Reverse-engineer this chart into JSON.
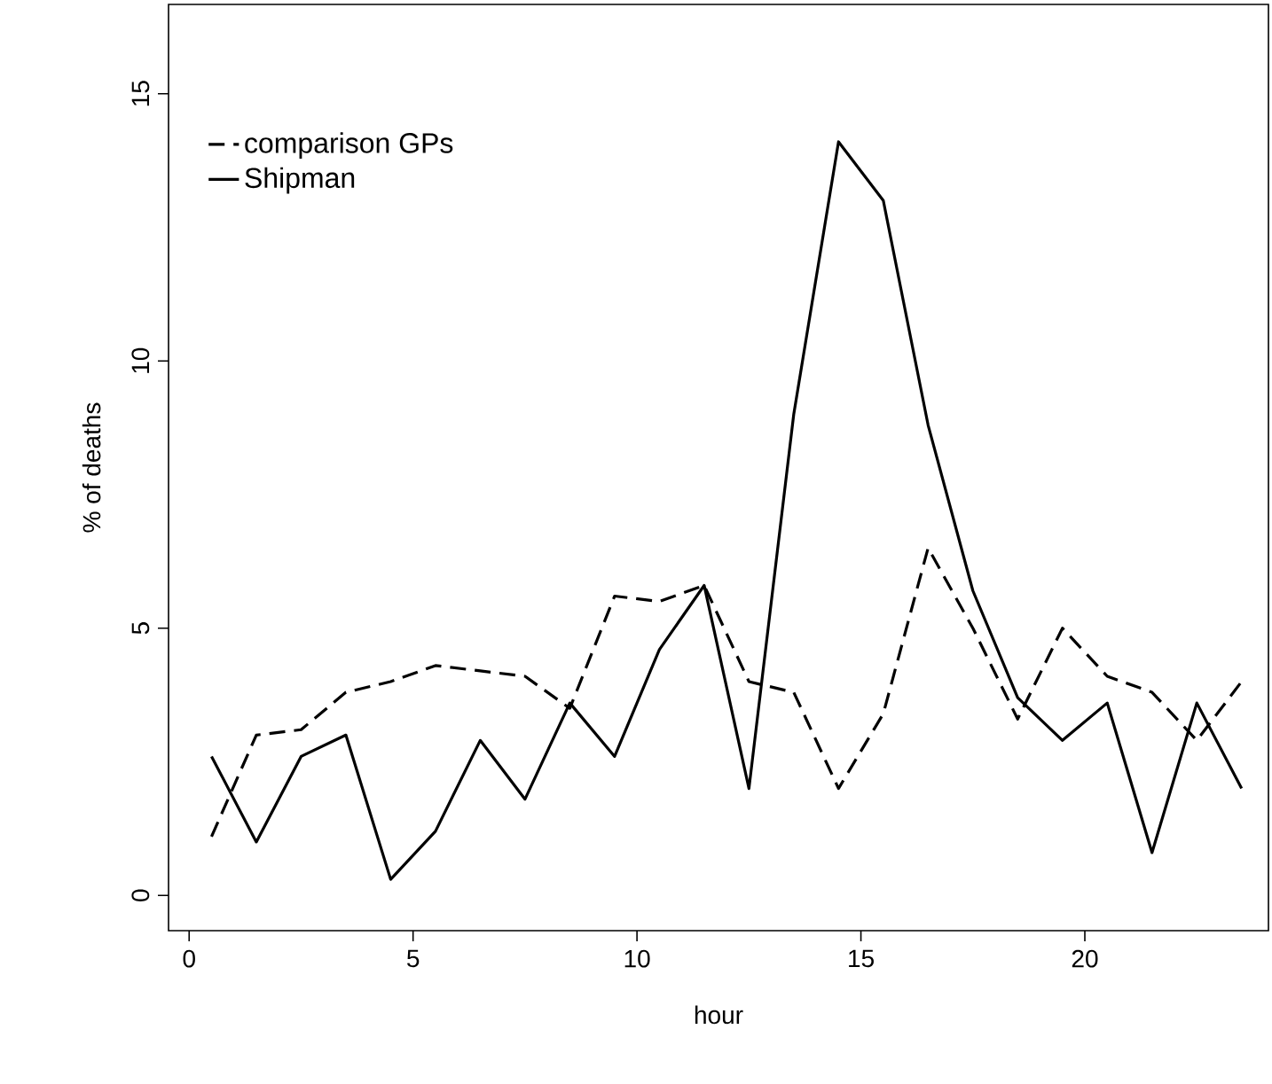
{
  "chart_data": {
    "type": "line",
    "xlabel": "hour",
    "ylabel": "% of deaths",
    "x": [
      0.5,
      1.5,
      2.5,
      3.5,
      4.5,
      5.5,
      6.5,
      7.5,
      8.5,
      9.5,
      10.5,
      11.5,
      12.5,
      13.5,
      14.5,
      15.5,
      16.5,
      17.5,
      18.5,
      19.5,
      20.5,
      21.5,
      22.5,
      23.5
    ],
    "series": [
      {
        "name": "comparison GPs",
        "color": "#000000",
        "line_style": "dashed",
        "values": [
          1.1,
          3.0,
          3.1,
          3.8,
          4.0,
          4.3,
          4.2,
          4.1,
          3.5,
          5.6,
          5.5,
          5.8,
          4.0,
          3.8,
          2.0,
          3.4,
          6.5,
          5.0,
          3.3,
          5.0,
          4.1,
          3.8,
          2.9,
          4.0
        ]
      },
      {
        "name": "Shipman",
        "color": "#000000",
        "line_style": "solid",
        "values": [
          2.6,
          1.0,
          2.6,
          3.0,
          0.3,
          1.2,
          2.9,
          1.8,
          3.6,
          2.6,
          4.6,
          5.8,
          2.0,
          9.0,
          14.1,
          13.0,
          8.8,
          5.7,
          3.7,
          2.9,
          3.6,
          0.8,
          3.6,
          2.0
        ]
      }
    ],
    "xlim": [
      -0.46,
      24.1
    ],
    "ylim": [
      -0.66,
      16.67
    ],
    "xticks": [
      0,
      5,
      10,
      15,
      20
    ],
    "yticks": [
      0,
      5,
      10,
      15
    ],
    "legend": "top left",
    "marker": "none",
    "grid": false
  }
}
